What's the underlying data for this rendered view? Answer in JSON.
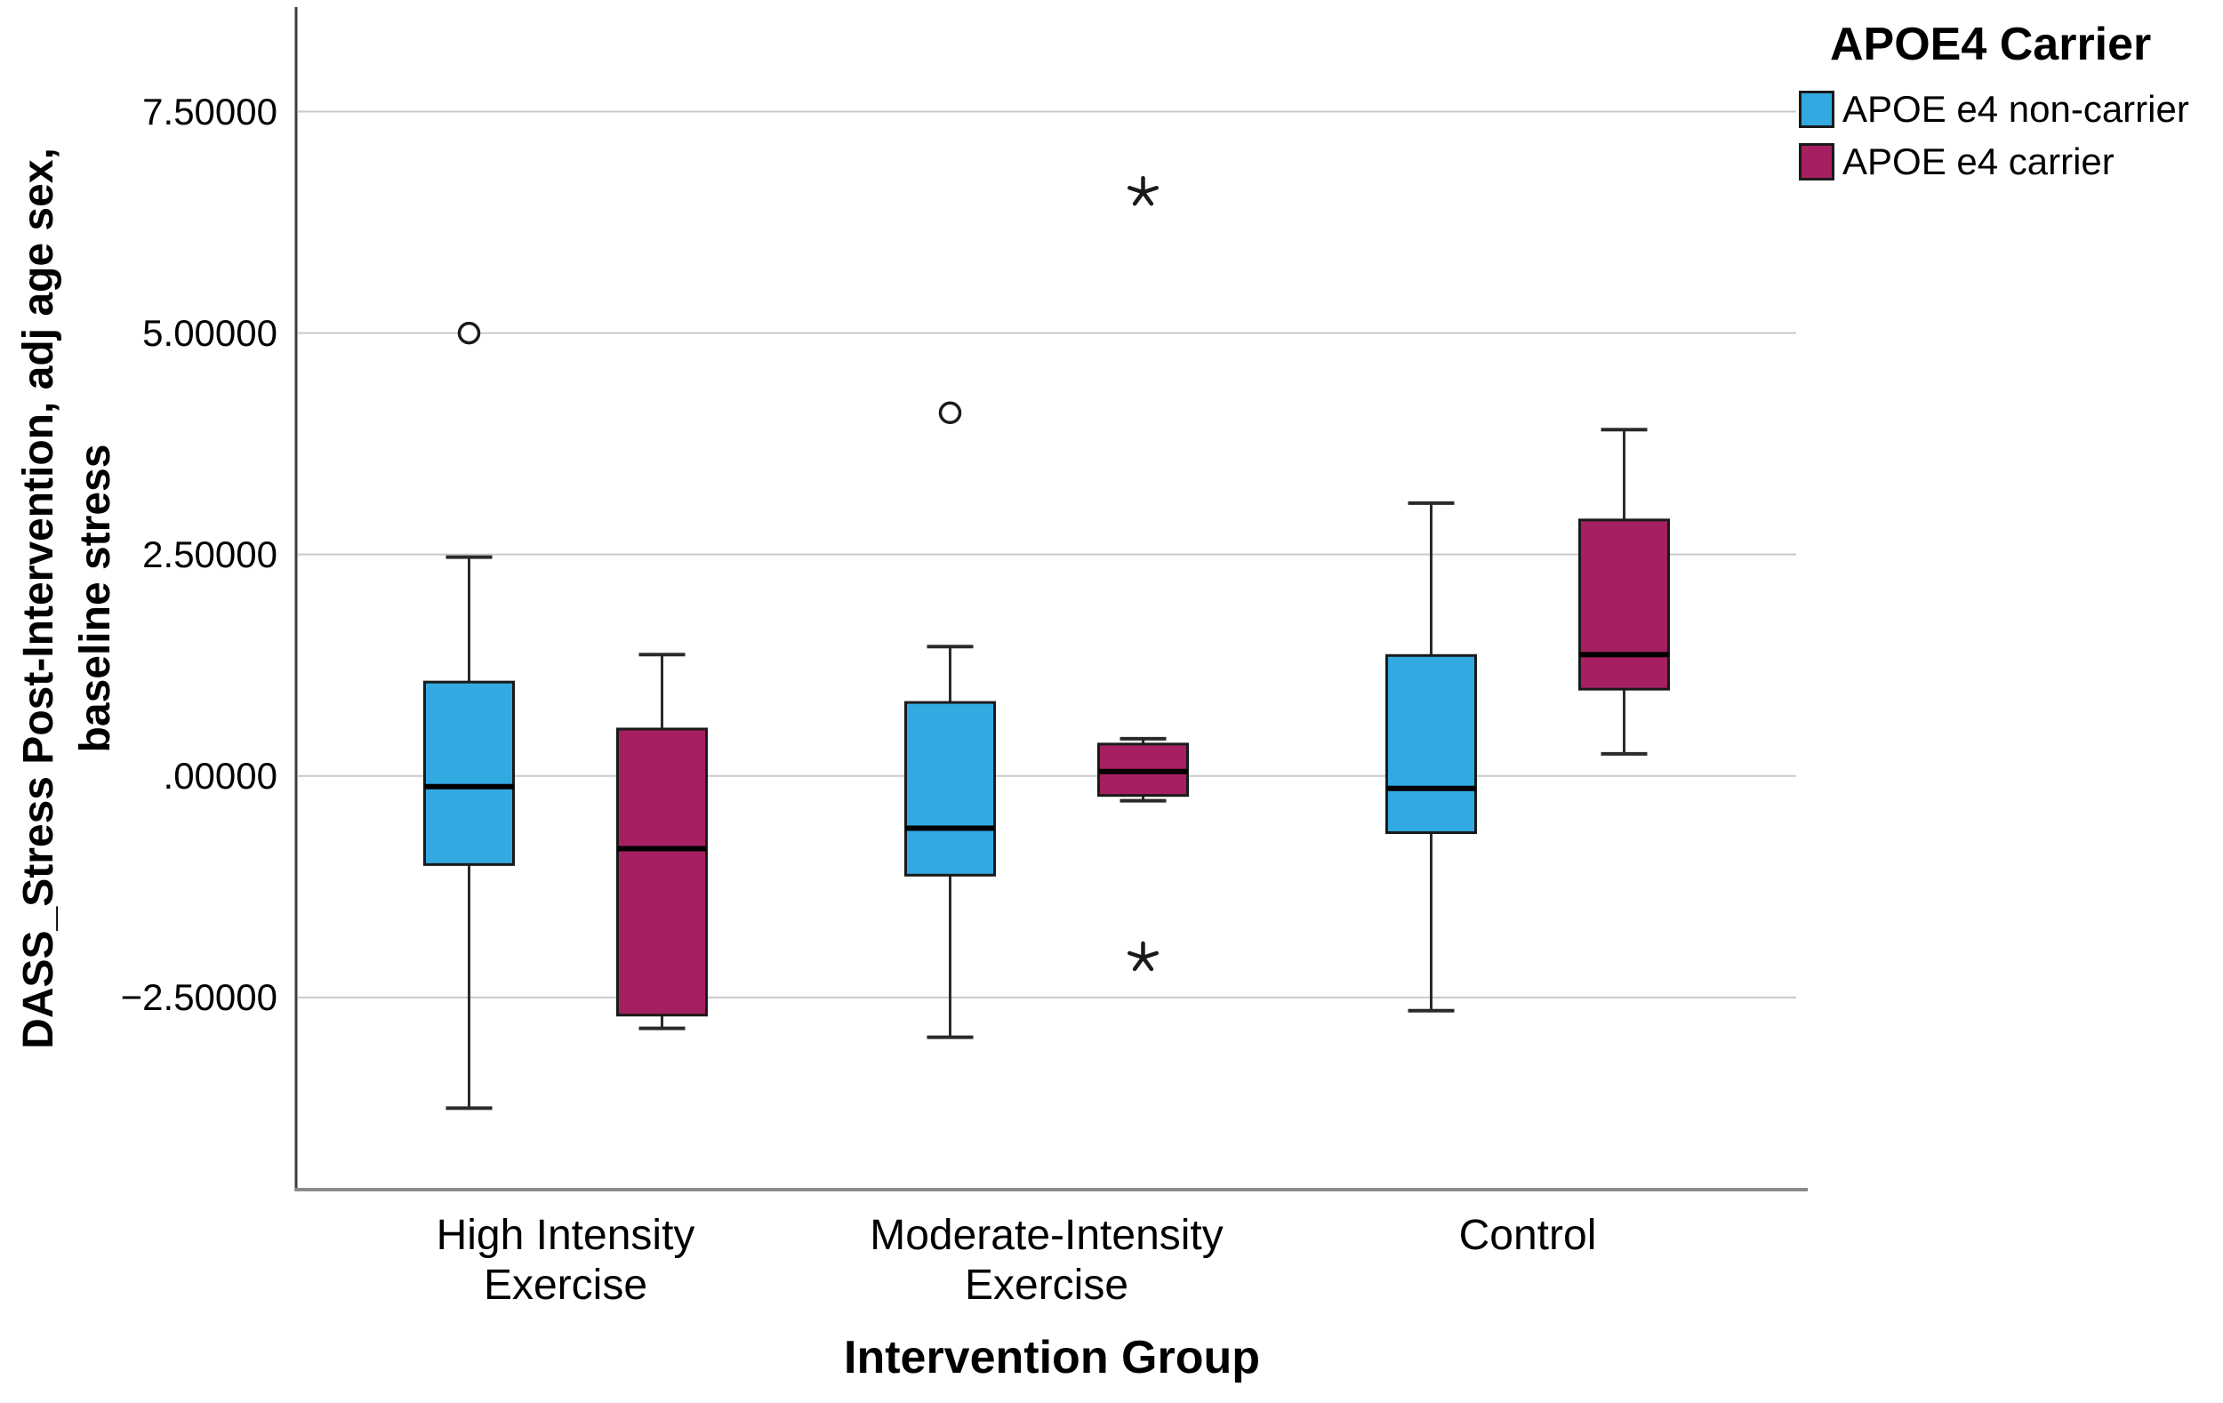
{
  "figure": {
    "y_axis_title_line1": "DASS_Stress Post-Intervention, adj age sex,",
    "y_axis_title_line2": "baseline stress",
    "x_axis_title": "Intervention Group"
  },
  "legend": {
    "title": "APOE4 Carrier",
    "items": [
      {
        "label": "APOE e4 non-carrier",
        "color": "#33A9E1"
      },
      {
        "label": "APOE e4 carrier",
        "color": "#A62061"
      }
    ]
  },
  "chart_data": {
    "type": "boxplot",
    "title": "",
    "xlabel": "Intervention Group",
    "ylabel": "DASS_Stress Post-Intervention, adj age sex, baseline stress",
    "grid": true,
    "legend_position": "top-right",
    "ylim": [
      -4.67,
      8.68
    ],
    "yticks": [
      {
        "value": 7.5,
        "label": "7.50000"
      },
      {
        "value": 5.0,
        "label": "5.00000"
      },
      {
        "value": 2.5,
        "label": "2.50000"
      },
      {
        "value": 0.0,
        "label": ".00000"
      },
      {
        "value": -2.5,
        "label": "−2.50000"
      }
    ],
    "categories": [
      {
        "label_lines": [
          "High Intensity",
          "Exercise"
        ]
      },
      {
        "label_lines": [
          "Moderate-Intensity",
          "Exercise"
        ]
      },
      {
        "label_lines": [
          "Control"
        ]
      }
    ],
    "series": [
      {
        "name": "APOE e4 non-carrier",
        "color": "#33A9E1",
        "boxes": [
          {
            "group": "High Intensity Exercise",
            "whisker_low": -3.75,
            "q1": -1.0,
            "median": -0.12,
            "q3": 1.06,
            "whisker_high": 2.47,
            "outliers": [
              {
                "value": 5.0,
                "marker": "circle"
              }
            ]
          },
          {
            "group": "Moderate-Intensity Exercise",
            "whisker_low": -2.95,
            "q1": -1.12,
            "median": -0.59,
            "q3": 0.83,
            "whisker_high": 1.46,
            "outliers": [
              {
                "value": 4.1,
                "marker": "circle"
              }
            ]
          },
          {
            "group": "Control",
            "whisker_low": -2.65,
            "q1": -0.64,
            "median": -0.14,
            "q3": 1.36,
            "whisker_high": 3.08,
            "outliers": []
          }
        ]
      },
      {
        "name": "APOE e4 carrier",
        "color": "#A62061",
        "boxes": [
          {
            "group": "High Intensity Exercise",
            "whisker_low": -2.85,
            "q1": -2.7,
            "median": -0.82,
            "q3": 0.53,
            "whisker_high": 1.37,
            "outliers": []
          },
          {
            "group": "Moderate-Intensity Exercise",
            "whisker_low": -0.28,
            "q1": -0.22,
            "median": 0.05,
            "q3": 0.36,
            "whisker_high": 0.42,
            "outliers": [
              {
                "value": 6.59,
                "marker": "star"
              },
              {
                "value": -2.05,
                "marker": "star"
              }
            ]
          },
          {
            "group": "Control",
            "whisker_low": 0.25,
            "q1": 0.98,
            "median": 1.37,
            "q3": 2.89,
            "whisker_high": 3.91,
            "outliers": []
          }
        ]
      }
    ],
    "colors": {
      "non_carrier_fill": "#33A9E1",
      "carrier_fill": "#A62061",
      "box_border": "#1a1a1a",
      "median_line": "#000000",
      "gridline": "#c9c9c9",
      "y_axis_line": "#3c3c3c",
      "x_axis_line": "#8a8a8a",
      "outlier_stroke": "#1a1a1a"
    }
  }
}
